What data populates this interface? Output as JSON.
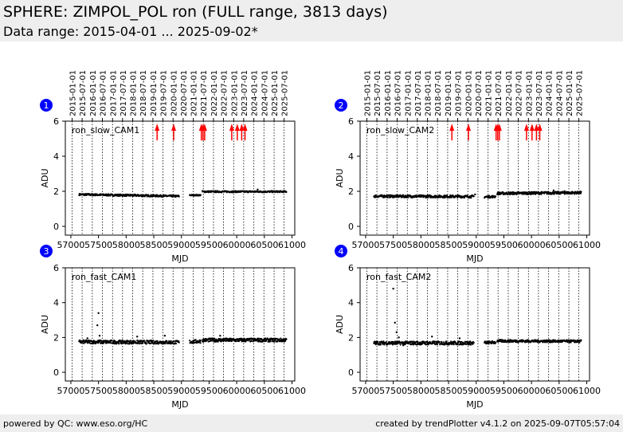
{
  "header": {
    "title": "SPHERE: ZIMPOL_POL ron (FULL range, 3813 days)",
    "subtitle": "Data range: 2015-04-01 ... 2025-09-02*"
  },
  "footer": {
    "left": "powered by QC: www.eso.org/HC",
    "right": "created by trendPlotter v4.1.2 on 2025-09-07T05:57:04"
  },
  "colors": {
    "marker_badge": "#0000ff",
    "event_arrow": "#ff0000",
    "points": "#000000",
    "header_bg": "#eeeeee"
  },
  "date_ticks": {
    "labels": [
      "2015-01-01",
      "2015-07-01",
      "2016-01-01",
      "2016-07-01",
      "2017-01-01",
      "2017-07-01",
      "2018-01-01",
      "2018-07-01",
      "2019-01-01",
      "2019-07-01",
      "2020-01-01",
      "2020-07-01",
      "2021-01-01",
      "2021-07-01",
      "2022-01-01",
      "2022-07-01",
      "2023-01-01",
      "2023-07-01",
      "2024-01-01",
      "2024-07-01",
      "2025-01-01",
      "2025-07-01"
    ],
    "mjd": [
      57023,
      57204,
      57388,
      57570,
      57754,
      57935,
      58119,
      58300,
      58484,
      58665,
      58849,
      59031,
      59215,
      59396,
      59580,
      59761,
      59945,
      60126,
      60310,
      60492,
      60676,
      60857
    ]
  },
  "chart_data": [
    {
      "type": "scatter",
      "panel": "1",
      "label": "ron_slow_CAM1",
      "xlabel": "MJD",
      "ylabel": "ADU",
      "xlim": [
        56900,
        61050
      ],
      "ylim": [
        -0.5,
        6
      ],
      "xticks": [
        57000,
        57500,
        58000,
        58500,
        59000,
        59500,
        60000,
        60500,
        61000
      ],
      "yticks": [
        0,
        2,
        4,
        6
      ],
      "event_arrows_mjd": [
        58560,
        58860,
        59360,
        59390,
        59420,
        59910,
        60010,
        60090,
        60150
      ],
      "segments": [
        {
          "x_start": 57150,
          "x_end": 58960,
          "y_start": 1.82,
          "y_end": 1.72,
          "spread": 0.05
        },
        {
          "x_start": 59150,
          "x_end": 59350,
          "y_start": 1.78,
          "y_end": 1.78,
          "spread": 0.03
        },
        {
          "x_start": 59380,
          "x_end": 60900,
          "y_start": 1.98,
          "y_end": 1.98,
          "spread": 0.04
        }
      ],
      "outliers": [
        [
          60380,
          2.1
        ]
      ]
    },
    {
      "type": "scatter",
      "panel": "2",
      "label": "ron_slow_CAM2",
      "xlabel": "MJD",
      "ylabel": "ADU",
      "xlim": [
        56900,
        61050
      ],
      "ylim": [
        -0.5,
        6
      ],
      "xticks": [
        57000,
        57500,
        58000,
        58500,
        59000,
        59500,
        60000,
        60500,
        61000
      ],
      "yticks": [
        0,
        2,
        4,
        6
      ],
      "event_arrows_mjd": [
        58560,
        58860,
        59360,
        59390,
        59420,
        59910,
        60010,
        60090,
        60150
      ],
      "segments": [
        {
          "x_start": 57150,
          "x_end": 58960,
          "y_start": 1.72,
          "y_end": 1.7,
          "spread": 0.07
        },
        {
          "x_start": 59150,
          "x_end": 59350,
          "y_start": 1.68,
          "y_end": 1.7,
          "spread": 0.06
        },
        {
          "x_start": 59380,
          "x_end": 60900,
          "y_start": 1.88,
          "y_end": 1.92,
          "spread": 0.07
        }
      ],
      "outliers": [
        [
          58980,
          1.82
        ],
        [
          60400,
          2.05
        ],
        [
          60600,
          2.0
        ]
      ]
    },
    {
      "type": "scatter",
      "panel": "3",
      "label": "ron_fast_CAM1",
      "xlabel": "MJD",
      "ylabel": "ADU",
      "xlim": [
        56900,
        61050
      ],
      "ylim": [
        -0.5,
        6
      ],
      "xticks": [
        57000,
        57500,
        58000,
        58500,
        59000,
        59500,
        60000,
        60500,
        61000
      ],
      "yticks": [
        0,
        2,
        4,
        6
      ],
      "event_arrows_mjd": [],
      "segments": [
        {
          "x_start": 57150,
          "x_end": 58960,
          "y_start": 1.75,
          "y_end": 1.72,
          "spread": 0.1
        },
        {
          "x_start": 59150,
          "x_end": 59350,
          "y_start": 1.75,
          "y_end": 1.78,
          "spread": 0.1
        },
        {
          "x_start": 59380,
          "x_end": 60900,
          "y_start": 1.85,
          "y_end": 1.85,
          "spread": 0.1
        }
      ],
      "outliers": [
        [
          57500,
          3.4
        ],
        [
          57480,
          2.7
        ],
        [
          57520,
          2.1
        ],
        [
          57300,
          1.95
        ],
        [
          58200,
          2.05
        ],
        [
          58700,
          2.1
        ],
        [
          59700,
          2.1
        ]
      ]
    },
    {
      "type": "scatter",
      "panel": "4",
      "label": "ron_fast_CAM2",
      "xlabel": "MJD",
      "ylabel": "ADU",
      "xlim": [
        56900,
        61050
      ],
      "ylim": [
        -0.5,
        6
      ],
      "xticks": [
        57000,
        57500,
        58000,
        58500,
        59000,
        59500,
        60000,
        60500,
        61000
      ],
      "yticks": [
        0,
        2,
        4,
        6
      ],
      "event_arrows_mjd": [],
      "segments": [
        {
          "x_start": 57150,
          "x_end": 58960,
          "y_start": 1.68,
          "y_end": 1.68,
          "spread": 0.1
        },
        {
          "x_start": 59150,
          "x_end": 59350,
          "y_start": 1.7,
          "y_end": 1.72,
          "spread": 0.08
        },
        {
          "x_start": 59380,
          "x_end": 60900,
          "y_start": 1.8,
          "y_end": 1.78,
          "spread": 0.07
        }
      ],
      "outliers": [
        [
          57500,
          4.8
        ],
        [
          57530,
          2.85
        ],
        [
          57560,
          2.3
        ],
        [
          57600,
          2.0
        ],
        [
          57680,
          1.55
        ],
        [
          58200,
          2.05
        ],
        [
          58700,
          1.95
        ]
      ]
    }
  ]
}
